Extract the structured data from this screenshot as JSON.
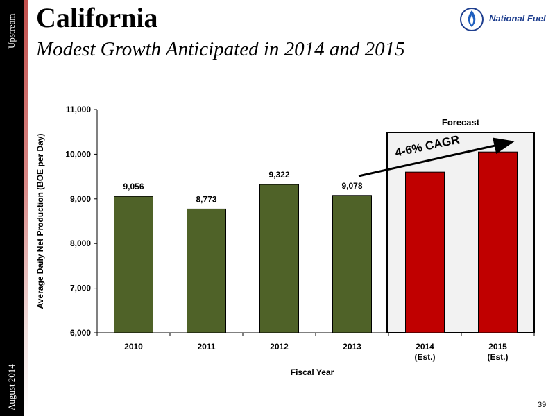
{
  "sidebar": {
    "top_label": "Upstream",
    "bottom_label": "August 2014"
  },
  "header": {
    "title": "California",
    "subtitle": "Modest Growth Anticipated in 2014 and 2015",
    "logo_text": "National Fuel"
  },
  "footer": {
    "page_number": "39"
  },
  "colors": {
    "actual": "#4f6228",
    "forecast": "#c00000",
    "forecast_bg": "#f2f2f2"
  },
  "chart_data": {
    "type": "bar",
    "categories": [
      "2010",
      "2011",
      "2012",
      "2013",
      "2014 (Est.)",
      "2015 (Est.)"
    ],
    "category_lines": [
      [
        "2010"
      ],
      [
        "2011"
      ],
      [
        "2012"
      ],
      [
        "2013"
      ],
      [
        "2014",
        "(Est.)"
      ],
      [
        "2015",
        "(Est.)"
      ]
    ],
    "values": [
      9056,
      8773,
      9322,
      9078,
      9600,
      10050
    ],
    "data_labels": [
      "9,056",
      "8,773",
      "9,322",
      "9,078",
      "",
      ""
    ],
    "bar_kind": [
      "actual",
      "actual",
      "actual",
      "actual",
      "forecast",
      "forecast"
    ],
    "xlabel": "Fiscal Year",
    "ylabel": "Average Daily Net Production (BOE per Day)",
    "ylim": [
      6000,
      11000
    ],
    "yticks": [
      6000,
      7000,
      8000,
      9000,
      10000,
      11000
    ],
    "ytick_labels": [
      "6,000",
      "7,000",
      "8,000",
      "9,000",
      "10,000",
      "11,000"
    ],
    "grid": false,
    "forecast_box_label": "Forecast",
    "growth_annotation": "4-6% CAGR"
  }
}
